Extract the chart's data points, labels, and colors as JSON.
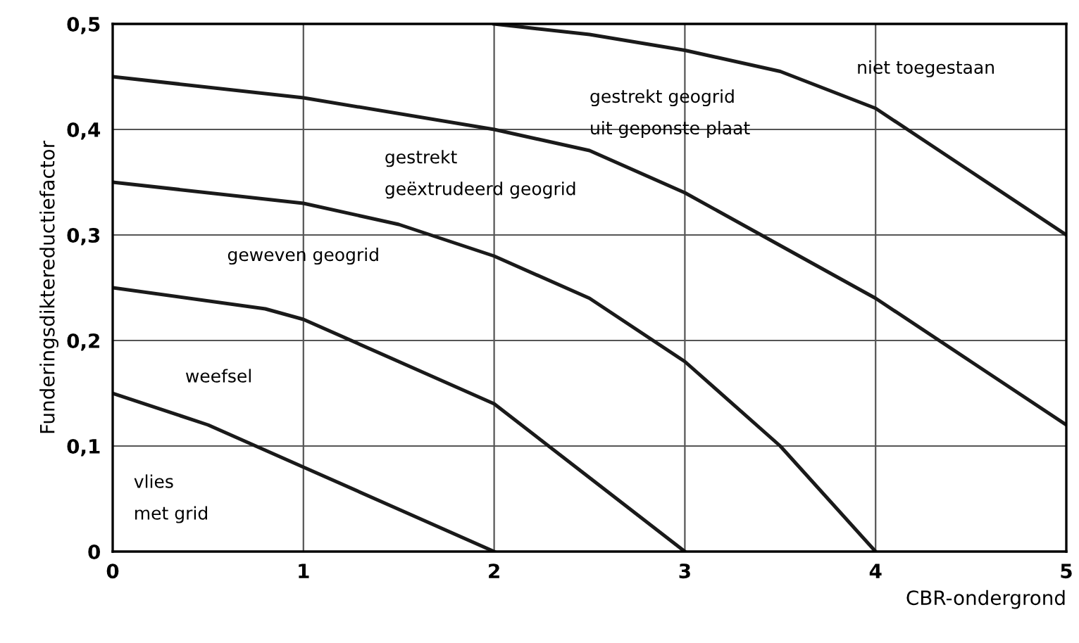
{
  "chart_data": {
    "type": "line",
    "xlabel": "CBR-ondergrond",
    "ylabel": "Funderingsdiktereductiefactor",
    "xlim": [
      0,
      5
    ],
    "ylim": [
      0,
      0.5
    ],
    "xticks": [
      0,
      1,
      2,
      3,
      4,
      5
    ],
    "yticks": [
      0,
      {
        "value": 0.1,
        "label": "0,1"
      },
      {
        "value": 0.2,
        "label": "0,2"
      },
      {
        "value": 0.3,
        "label": "0,3"
      },
      {
        "value": 0.4,
        "label": "0,4"
      },
      {
        "value": 0.5,
        "label": "0,5"
      }
    ],
    "grid": true,
    "marker": "none",
    "line_style": "solid",
    "series": [
      {
        "color": "#1a1a1a",
        "x": [
          0,
          0.5,
          1,
          1.5,
          2
        ],
        "values": [
          0.15,
          0.12,
          0.08,
          0.04,
          0
        ]
      },
      {
        "color": "#1a1a1a",
        "x": [
          0,
          0.8,
          1,
          1.5,
          2,
          2.5,
          3
        ],
        "values": [
          0.25,
          0.23,
          0.22,
          0.18,
          0.14,
          0.07,
          0
        ]
      },
      {
        "color": "#1a1a1a",
        "x": [
          0,
          1,
          1.5,
          2,
          2.5,
          3,
          3.5,
          4
        ],
        "values": [
          0.35,
          0.33,
          0.31,
          0.28,
          0.24,
          0.18,
          0.1,
          0
        ]
      },
      {
        "color": "#1a1a1a",
        "x": [
          0,
          1,
          2,
          2.5,
          3,
          3.5,
          4,
          4.5,
          5
        ],
        "values": [
          0.45,
          0.43,
          0.4,
          0.38,
          0.34,
          0.29,
          0.24,
          0.18,
          0.12
        ]
      },
      {
        "color": "#1a1a1a",
        "x": [
          2,
          2.5,
          3,
          3.5,
          4,
          4.5,
          5
        ],
        "values": [
          0.5,
          0.49,
          0.475,
          0.455,
          0.42,
          0.36,
          0.3
        ]
      }
    ],
    "annotations": [
      "niet toegestaan",
      "gestrekt geogrid",
      "uit geponste plaat",
      "gestrekt",
      "geëxtrudeerd geogrid",
      "geweven geogrid",
      "weefsel",
      "vlies",
      "met grid"
    ]
  }
}
